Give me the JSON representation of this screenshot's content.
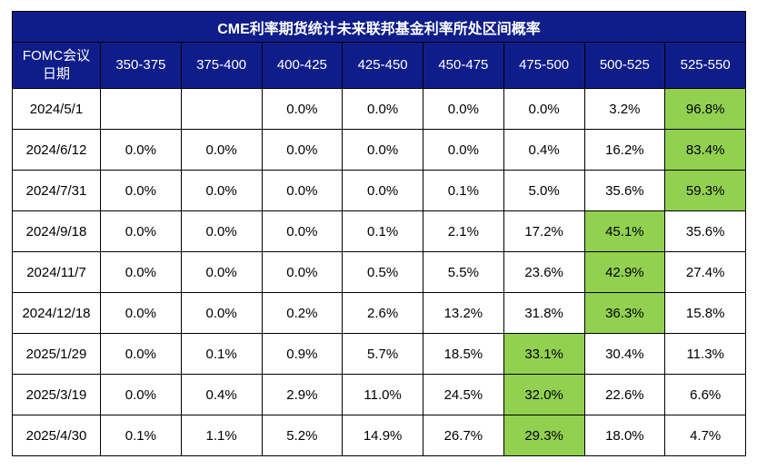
{
  "title": "CME利率期货统计未来联邦基金利率所处区间概率",
  "header": {
    "date_col": [
      "FOMC会议",
      "日期"
    ],
    "ranges": [
      "350-375",
      "375-400",
      "400-425",
      "425-450",
      "450-475",
      "475-500",
      "500-525",
      "525-550"
    ]
  },
  "highlight_color": "#92d050",
  "header_color": "#0f1d8a",
  "rows": [
    {
      "date": "2024/5/1",
      "values": [
        "",
        "",
        "0.0%",
        "0.0%",
        "0.0%",
        "0.0%",
        "3.2%",
        "96.8%"
      ],
      "highlight": 7
    },
    {
      "date": "2024/6/12",
      "values": [
        "0.0%",
        "0.0%",
        "0.0%",
        "0.0%",
        "0.0%",
        "0.4%",
        "16.2%",
        "83.4%"
      ],
      "highlight": 7
    },
    {
      "date": "2024/7/31",
      "values": [
        "0.0%",
        "0.0%",
        "0.0%",
        "0.0%",
        "0.1%",
        "5.0%",
        "35.6%",
        "59.3%"
      ],
      "highlight": 7
    },
    {
      "date": "2024/9/18",
      "values": [
        "0.0%",
        "0.0%",
        "0.0%",
        "0.1%",
        "2.1%",
        "17.2%",
        "45.1%",
        "35.6%"
      ],
      "highlight": 6
    },
    {
      "date": "2024/11/7",
      "values": [
        "0.0%",
        "0.0%",
        "0.0%",
        "0.5%",
        "5.5%",
        "23.6%",
        "42.9%",
        "27.4%"
      ],
      "highlight": 6
    },
    {
      "date": "2024/12/18",
      "values": [
        "0.0%",
        "0.0%",
        "0.2%",
        "2.6%",
        "13.2%",
        "31.8%",
        "36.3%",
        "15.8%"
      ],
      "highlight": 6
    },
    {
      "date": "2025/1/29",
      "values": [
        "0.0%",
        "0.1%",
        "0.9%",
        "5.7%",
        "18.5%",
        "33.1%",
        "30.4%",
        "11.3%"
      ],
      "highlight": 5
    },
    {
      "date": "2025/3/19",
      "values": [
        "0.0%",
        "0.4%",
        "2.9%",
        "11.0%",
        "24.5%",
        "32.0%",
        "22.6%",
        "6.6%"
      ],
      "highlight": 5
    },
    {
      "date": "2025/4/30",
      "values": [
        "0.1%",
        "1.1%",
        "5.2%",
        "14.9%",
        "26.7%",
        "29.3%",
        "18.0%",
        "4.7%"
      ],
      "highlight": 5
    }
  ]
}
